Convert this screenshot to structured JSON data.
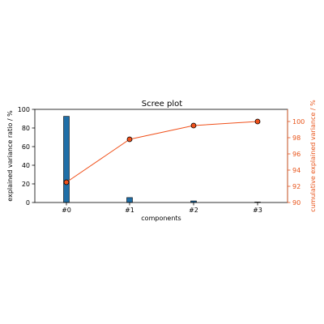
{
  "chart_data": {
    "type": "bar",
    "title": "Scree plot",
    "xlabel": "components",
    "ylabel": "explained variance ratio / %",
    "ylabel_right": "cumulative explained variance / %",
    "categories": [
      "#0",
      "#1",
      "#2",
      "#3"
    ],
    "ylim": [
      0,
      100
    ],
    "y_ticks": [
      0,
      20,
      40,
      60,
      80,
      100
    ],
    "ylim_right": [
      90,
      101.5
    ],
    "y_ticks_right": [
      90,
      92,
      94,
      96,
      98,
      100
    ],
    "grid": false,
    "series": [
      {
        "type": "bar",
        "axis": "left",
        "values": [
          92.5,
          5.3,
          1.7,
          0.5
        ]
      },
      {
        "type": "line",
        "axis": "right",
        "values": [
          92.5,
          97.8,
          99.5,
          100.0
        ]
      }
    ],
    "colors": {
      "bar": "#1f6fa8",
      "bar_edge": "#000000",
      "line": "#f0501a",
      "marker_edge": "#000000",
      "right_axis": "#e8541a"
    }
  }
}
